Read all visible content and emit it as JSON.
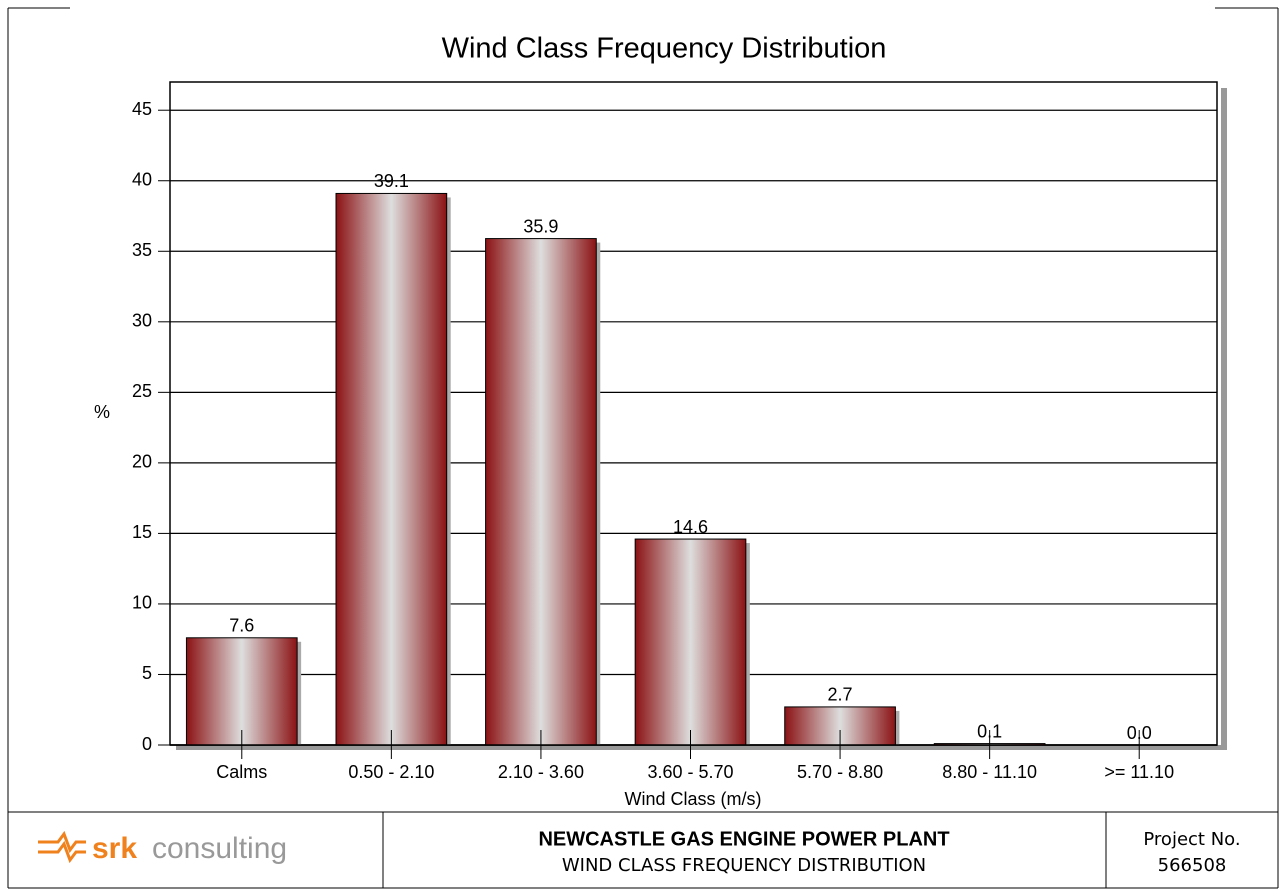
{
  "chart_data": {
    "type": "bar",
    "title": "Wind Class Frequency Distribution",
    "x_label": "Wind Class (m/s)",
    "y_label": "%",
    "categories": [
      "Calms",
      "0.50 - 2.10",
      "2.10 - 3.60",
      "3.60 - 5.70",
      "5.70 - 8.80",
      "8.80 - 11.10",
      ">= 11.10"
    ],
    "values": [
      7.6,
      39.1,
      35.9,
      14.6,
      2.7,
      0.1,
      0.0
    ],
    "value_labels": [
      "7.6",
      "39.1",
      "35.9",
      "14.6",
      "2.7",
      "0.1",
      "0.0"
    ],
    "color": "#8b1214",
    "ylim": [
      0,
      47
    ],
    "yticks": [
      0,
      5,
      10,
      15,
      20,
      25,
      30,
      35,
      40,
      45
    ],
    "grid": true
  },
  "footer": {
    "logo": {
      "brand": "srk",
      "word": "consulting"
    },
    "title": "NEWCASTLE GAS ENGINE POWER PLANT",
    "subtitle": "WIND CLASS FREQUENCY DISTRIBUTION",
    "project_label": "Project No.",
    "project_number": "566508"
  }
}
